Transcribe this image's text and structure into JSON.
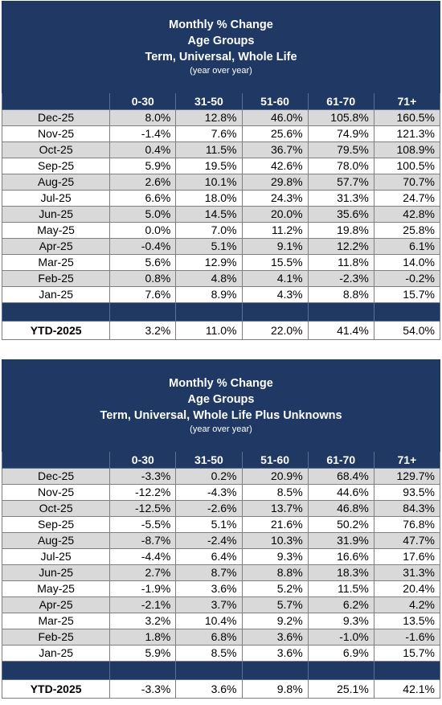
{
  "tables": [
    {
      "title": "Monthly % Change",
      "subtitle1": "Age Groups",
      "subtitle2": "Term, Universal, Whole Life",
      "note": "(year over year)",
      "columns": [
        "",
        "0-30",
        "31-50",
        "51-60",
        "61-70",
        "71+"
      ],
      "rows": [
        {
          "label": "Dec-25",
          "values": [
            "8.0%",
            "12.8%",
            "46.0%",
            "105.8%",
            "160.5%"
          ]
        },
        {
          "label": "Nov-25",
          "values": [
            "-1.4%",
            "7.6%",
            "25.6%",
            "74.9%",
            "121.3%"
          ]
        },
        {
          "label": "Oct-25",
          "values": [
            "0.4%",
            "11.5%",
            "36.7%",
            "79.5%",
            "108.9%"
          ]
        },
        {
          "label": "Sep-25",
          "values": [
            "5.9%",
            "19.5%",
            "42.6%",
            "78.0%",
            "100.5%"
          ]
        },
        {
          "label": "Aug-25",
          "values": [
            "2.6%",
            "10.1%",
            "29.8%",
            "57.7%",
            "70.7%"
          ]
        },
        {
          "label": "Jul-25",
          "values": [
            "6.6%",
            "18.0%",
            "24.3%",
            "31.3%",
            "24.7%"
          ]
        },
        {
          "label": "Jun-25",
          "values": [
            "5.0%",
            "14.5%",
            "20.0%",
            "35.6%",
            "42.8%"
          ]
        },
        {
          "label": "May-25",
          "values": [
            "0.0%",
            "7.0%",
            "11.2%",
            "19.8%",
            "25.8%"
          ]
        },
        {
          "label": "Apr-25",
          "values": [
            "-0.4%",
            "5.1%",
            "9.1%",
            "12.2%",
            "6.1%"
          ]
        },
        {
          "label": "Mar-25",
          "values": [
            "5.6%",
            "12.9%",
            "15.5%",
            "11.8%",
            "14.0%"
          ]
        },
        {
          "label": "Feb-25",
          "values": [
            "0.8%",
            "4.8%",
            "4.1%",
            "-2.3%",
            "-0.2%"
          ]
        },
        {
          "label": "Jan-25",
          "values": [
            "7.6%",
            "8.9%",
            "4.3%",
            "8.8%",
            "15.7%"
          ]
        }
      ],
      "ytd": {
        "label": "YTD-2025",
        "values": [
          "3.2%",
          "11.0%",
          "22.0%",
          "41.4%",
          "54.0%"
        ]
      }
    },
    {
      "title": "Monthly % Change",
      "subtitle1": "Age Groups",
      "subtitle2": "Term, Universal, Whole Life Plus Unknowns",
      "note": "(year over year)",
      "columns": [
        "",
        "0-30",
        "31-50",
        "51-60",
        "61-70",
        "71+"
      ],
      "rows": [
        {
          "label": "Dec-25",
          "values": [
            "-3.3%",
            "0.2%",
            "20.9%",
            "68.4%",
            "129.7%"
          ]
        },
        {
          "label": "Nov-25",
          "values": [
            "-12.2%",
            "-4.3%",
            "8.5%",
            "44.6%",
            "93.5%"
          ]
        },
        {
          "label": "Oct-25",
          "values": [
            "-12.5%",
            "-2.6%",
            "13.7%",
            "46.8%",
            "84.3%"
          ]
        },
        {
          "label": "Sep-25",
          "values": [
            "-5.5%",
            "5.1%",
            "21.6%",
            "50.2%",
            "76.8%"
          ]
        },
        {
          "label": "Aug-25",
          "values": [
            "-8.7%",
            "-2.4%",
            "10.3%",
            "31.9%",
            "47.7%"
          ]
        },
        {
          "label": "Jul-25",
          "values": [
            "-4.4%",
            "6.4%",
            "9.3%",
            "16.6%",
            "17.6%"
          ]
        },
        {
          "label": "Jun-25",
          "values": [
            "2.7%",
            "8.7%",
            "8.8%",
            "18.3%",
            "31.3%"
          ]
        },
        {
          "label": "May-25",
          "values": [
            "-1.9%",
            "3.6%",
            "5.2%",
            "11.5%",
            "20.4%"
          ]
        },
        {
          "label": "Apr-25",
          "values": [
            "-2.1%",
            "3.7%",
            "5.7%",
            "6.2%",
            "4.2%"
          ]
        },
        {
          "label": "Mar-25",
          "values": [
            "3.2%",
            "10.4%",
            "9.2%",
            "9.3%",
            "13.5%"
          ]
        },
        {
          "label": "Feb-25",
          "values": [
            "1.8%",
            "6.8%",
            "3.6%",
            "-1.0%",
            "-1.6%"
          ]
        },
        {
          "label": "Jan-25",
          "values": [
            "5.9%",
            "8.5%",
            "3.6%",
            "6.9%",
            "15.7%"
          ]
        }
      ],
      "ytd": {
        "label": "YTD-2025",
        "values": [
          "-3.3%",
          "3.6%",
          "9.8%",
          "25.1%",
          "42.1%"
        ]
      }
    }
  ],
  "colors": {
    "header_bg": "#1f3864",
    "header_text": "#ffffff",
    "shaded_row": "#d9d9d9"
  }
}
